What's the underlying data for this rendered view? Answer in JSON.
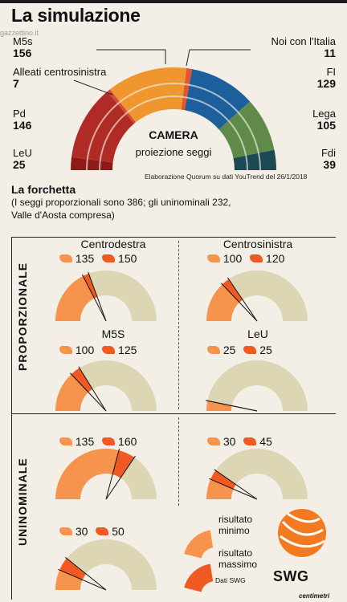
{
  "header": {
    "title": "La simulazione",
    "watermark": "gazzettino.it"
  },
  "colors": {
    "m5s": "#f0962e",
    "noi": "#e8542e",
    "fi": "#1d5f9c",
    "lega": "#5f8a4a",
    "fdi": "#1a4a52",
    "pd": "#b02a26",
    "alleati": "#d44a3c",
    "leu": "#8e1a1a",
    "gauge_bg": "#dcd6b5",
    "min": "#f6934d",
    "max": "#f05a22"
  },
  "chart_data": [
    {
      "type": "pie",
      "title": "CAMERA",
      "subtitle": "proiezione seggi",
      "note": "Elaborazione Quorum  su dati YouTrend del 26/1/2018",
      "parties": [
        {
          "name": "LeU",
          "seats": 25,
          "color": "#8e1a1a"
        },
        {
          "name": "Pd",
          "seats": 146,
          "color": "#b02a26"
        },
        {
          "name": "Alleati centrosinistra",
          "seats": 7,
          "color": "#d44a3c"
        },
        {
          "name": "M5s",
          "seats": 156,
          "color": "#f0962e"
        },
        {
          "name": "Noi con l'Italia",
          "seats": 11,
          "color": "#e8542e"
        },
        {
          "name": "FI",
          "seats": 129,
          "color": "#1d5f9c"
        },
        {
          "name": "Lega",
          "seats": 105,
          "color": "#5f8a4a"
        },
        {
          "name": "Fdi",
          "seats": 39,
          "color": "#1a4a52"
        }
      ]
    }
  ],
  "forchetta": {
    "title": "La forchetta",
    "note": "(I seggi proporzionali sono 386; gli uninominali 232,\nValle d'Aosta compresa)"
  },
  "sections": {
    "proporzionale": "PROPORZIONALE",
    "uninominale": "UNINOMINALE"
  },
  "gauges": [
    {
      "section": "proporzionale",
      "name": "Centrodestra",
      "min": 135,
      "max": 150,
      "total": 386
    },
    {
      "section": "proporzionale",
      "name": "Centrosinistra",
      "min": 100,
      "max": 120,
      "total": 386
    },
    {
      "section": "proporzionale",
      "name": "M5S",
      "min": 100,
      "max": 125,
      "total": 386
    },
    {
      "section": "proporzionale",
      "name": "LeU",
      "min": 25,
      "max": 25,
      "total": 386
    },
    {
      "section": "uninominale",
      "name": "",
      "min": 135,
      "max": 160,
      "total": 232
    },
    {
      "section": "uninominale",
      "name": "",
      "min": 30,
      "max": 45,
      "total": 232
    },
    {
      "section": "uninominale",
      "name": "",
      "min": 30,
      "max": 50,
      "total": 232
    }
  ],
  "legend": {
    "min": "risultato\nminimo",
    "max": "risultato\nmassimo"
  },
  "footer": {
    "dati": "Dati SWG",
    "brand": "SWG",
    "centimetri": "centimetri"
  }
}
